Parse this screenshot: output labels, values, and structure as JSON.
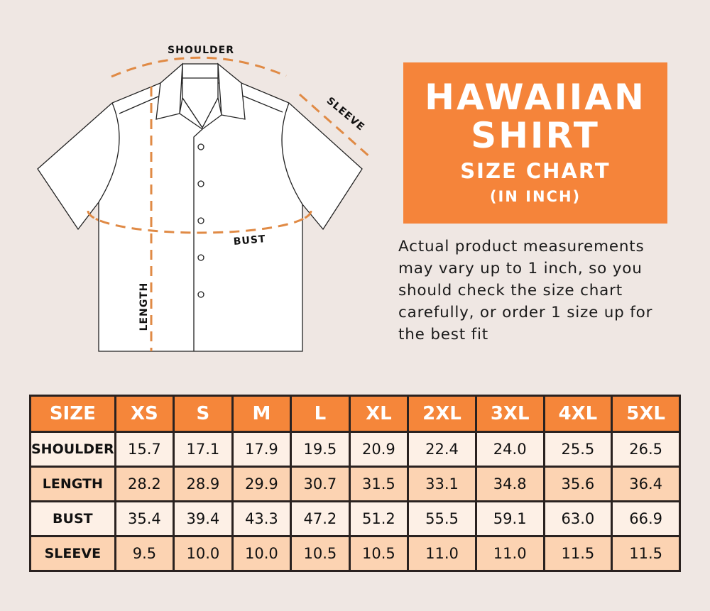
{
  "diagram": {
    "labels": {
      "shoulder": "SHOULDER",
      "sleeve": "SLEEVE",
      "bust": "BUST",
      "length": "LENGTH"
    },
    "dash_color": "#e08a45"
  },
  "title": {
    "line1": "HAWAIIAN",
    "line2": "SHIRT",
    "line3": "SIZE CHART",
    "line4": "(IN INCH)",
    "color": "#f5843a"
  },
  "note": "Actual product measurements may vary up to 1 inch, so you should check the size chart carefully, or order 1 size up for the best fit",
  "table": {
    "header": [
      "SIZE",
      "XS",
      "S",
      "M",
      "L",
      "XL",
      "2XL",
      "3XL",
      "4XL",
      "5XL"
    ],
    "rows": [
      {
        "label": "SHOULDER",
        "values": [
          "15.7",
          "17.1",
          "17.9",
          "19.5",
          "20.9",
          "22.4",
          "24.0",
          "25.5",
          "26.5"
        ]
      },
      {
        "label": "LENGTH",
        "values": [
          "28.2",
          "28.9",
          "29.9",
          "30.7",
          "31.5",
          "33.1",
          "34.8",
          "35.6",
          "36.4"
        ]
      },
      {
        "label": "BUST",
        "values": [
          "35.4",
          "39.4",
          "43.3",
          "47.2",
          "51.2",
          "55.5",
          "59.1",
          "63.0",
          "66.9"
        ]
      },
      {
        "label": "SLEEVE",
        "values": [
          "9.5",
          "10.0",
          "10.0",
          "10.5",
          "10.5",
          "11.0",
          "11.0",
          "11.5",
          "11.5"
        ]
      }
    ]
  }
}
